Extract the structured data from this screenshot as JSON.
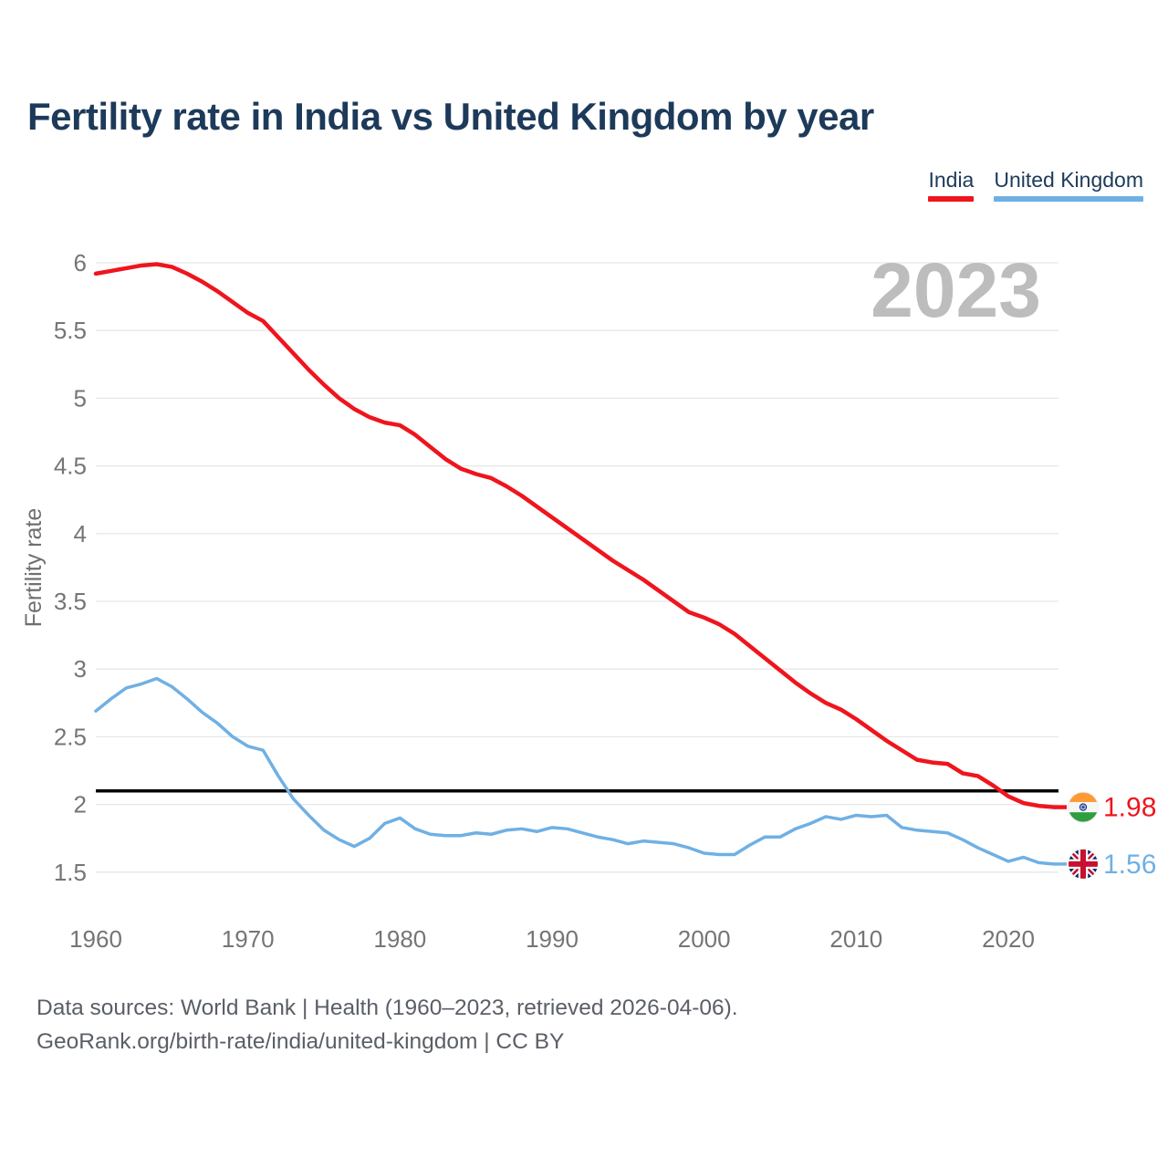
{
  "header": {
    "title": "Fertility rate in India vs United Kingdom by year"
  },
  "legend": [
    {
      "label": "India",
      "color": "#ef151d"
    },
    {
      "label": "United Kingdom",
      "color": "#6fb0e4"
    }
  ],
  "watermark": {
    "text": "2023",
    "color": "#bdbdbd"
  },
  "chart_data": {
    "type": "line",
    "title": "Fertility rate in India vs United Kingdom by year",
    "xlabel": "",
    "ylabel": "Fertility rate",
    "xlim": [
      1960,
      2023
    ],
    "ylim": [
      1.5,
      6
    ],
    "grid": true,
    "legend_position": "top-right",
    "xticks": [
      1960,
      1970,
      1980,
      1990,
      2000,
      2010,
      2020
    ],
    "yticks": [
      6,
      5.5,
      5,
      4.5,
      4,
      3.5,
      3,
      2.5,
      2,
      1.5
    ],
    "x": [
      1960,
      1961,
      1962,
      1963,
      1964,
      1965,
      1966,
      1967,
      1968,
      1969,
      1970,
      1971,
      1972,
      1973,
      1974,
      1975,
      1976,
      1977,
      1978,
      1979,
      1980,
      1981,
      1982,
      1983,
      1984,
      1985,
      1986,
      1987,
      1988,
      1989,
      1990,
      1991,
      1992,
      1993,
      1994,
      1995,
      1996,
      1997,
      1998,
      1999,
      2000,
      2001,
      2002,
      2003,
      2004,
      2005,
      2006,
      2007,
      2008,
      2009,
      2010,
      2011,
      2012,
      2013,
      2014,
      2015,
      2016,
      2017,
      2018,
      2019,
      2020,
      2021,
      2022,
      2023
    ],
    "series": [
      {
        "name": "India",
        "color": "#ef151d",
        "values": [
          5.92,
          5.94,
          5.96,
          5.98,
          5.99,
          5.97,
          5.92,
          5.86,
          5.79,
          5.71,
          5.63,
          5.57,
          5.45,
          5.33,
          5.21,
          5.1,
          5.0,
          4.92,
          4.86,
          4.82,
          4.8,
          4.73,
          4.64,
          4.55,
          4.48,
          4.44,
          4.41,
          4.35,
          4.28,
          4.2,
          4.12,
          4.04,
          3.96,
          3.88,
          3.8,
          3.73,
          3.66,
          3.58,
          3.5,
          3.42,
          3.38,
          3.33,
          3.26,
          3.17,
          3.08,
          2.99,
          2.9,
          2.82,
          2.75,
          2.7,
          2.63,
          2.55,
          2.47,
          2.4,
          2.33,
          2.31,
          2.3,
          2.23,
          2.21,
          2.14,
          2.06,
          2.01,
          1.99,
          1.98
        ]
      },
      {
        "name": "United Kingdom",
        "color": "#6fb0e4",
        "values": [
          2.69,
          2.78,
          2.86,
          2.89,
          2.93,
          2.87,
          2.78,
          2.68,
          2.6,
          2.5,
          2.43,
          2.4,
          2.21,
          2.04,
          1.92,
          1.81,
          1.74,
          1.69,
          1.75,
          1.86,
          1.9,
          1.82,
          1.78,
          1.77,
          1.77,
          1.79,
          1.78,
          1.81,
          1.82,
          1.8,
          1.83,
          1.82,
          1.79,
          1.76,
          1.74,
          1.71,
          1.73,
          1.72,
          1.71,
          1.68,
          1.64,
          1.63,
          1.63,
          1.7,
          1.76,
          1.76,
          1.82,
          1.86,
          1.91,
          1.89,
          1.92,
          1.91,
          1.92,
          1.83,
          1.81,
          1.8,
          1.79,
          1.74,
          1.68,
          1.63,
          1.58,
          1.61,
          1.57,
          1.56
        ]
      }
    ],
    "reference_line": {
      "value": 2.1,
      "color": "#000000"
    },
    "end_labels": [
      {
        "series": "India",
        "value": "1.98",
        "flag": "india",
        "color": "#ef151d"
      },
      {
        "series": "United Kingdom",
        "value": "1.56",
        "flag": "uk",
        "color": "#6fb0e4"
      }
    ]
  },
  "footer": {
    "line1": "Data sources: World Bank | Health (1960–2023, retrieved 2026-04-06).",
    "line2": "GeoRank.org/birth-rate/india/united-kingdom | CC BY"
  }
}
